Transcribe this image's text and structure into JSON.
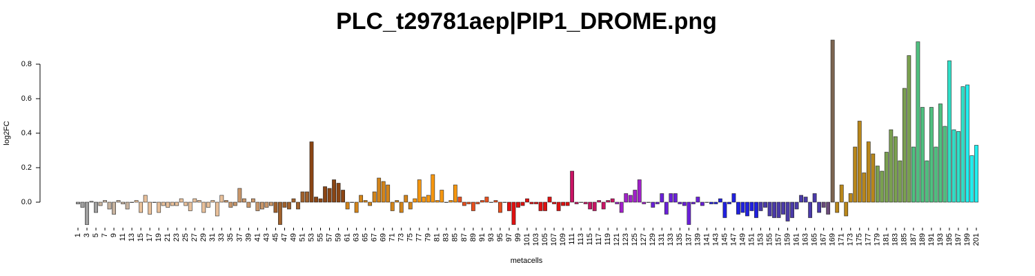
{
  "chart_data": {
    "type": "bar",
    "title": "PLC_t29781aep|PIP1_DROME.png",
    "x_label": "metacells",
    "y_label": "log2FC",
    "categories": [
      "1",
      null,
      "3",
      null,
      "5",
      null,
      "7",
      null,
      "9",
      null,
      "11",
      null,
      "13",
      null,
      "15",
      null,
      "17",
      null,
      "19",
      null,
      "21",
      null,
      "23",
      null,
      "25",
      null,
      "27",
      null,
      "29",
      null,
      "31",
      null,
      "33",
      null,
      "35",
      null,
      "37",
      null,
      "39",
      null,
      "41",
      null,
      "43",
      null,
      "45",
      null,
      "47",
      null,
      "49",
      null,
      "51",
      null,
      "53",
      null,
      "55",
      null,
      "57",
      null,
      "59",
      null,
      "61",
      null,
      "63",
      null,
      "65",
      null,
      "67",
      null,
      "69",
      null,
      "71",
      null,
      "73",
      null,
      "75",
      null,
      "77",
      null,
      "79",
      null,
      "81",
      null,
      "83",
      null,
      "85",
      null,
      "87",
      null,
      "89",
      null,
      "91",
      null,
      "93",
      null,
      "95",
      null,
      "97",
      null,
      "99",
      null,
      "101",
      null,
      "103",
      null,
      "105",
      null,
      "107",
      null,
      "109",
      null,
      "111",
      null,
      "113",
      null,
      "115",
      null,
      "117",
      null,
      "119",
      null,
      "121",
      null,
      "123",
      null,
      "125",
      null,
      "127",
      null,
      "129",
      null,
      "131",
      null,
      "133",
      null,
      "135",
      null,
      "137",
      null,
      "139",
      null,
      "141",
      null,
      "143",
      null,
      "145",
      null,
      "147",
      null,
      "149",
      null,
      "151",
      null,
      "153",
      null,
      "155",
      null,
      "157",
      null,
      "159",
      null,
      "161",
      null,
      "163",
      null,
      "165",
      null,
      "167",
      null,
      "169",
      null,
      "171",
      null,
      "173",
      null,
      "175",
      null,
      "177",
      null,
      "179",
      null,
      "181",
      null,
      "183",
      null,
      "185",
      null,
      "187",
      null,
      "189",
      null,
      "191",
      null,
      "193",
      null,
      "195",
      null,
      "197",
      null,
      "199",
      null,
      "201"
    ],
    "values": [
      -0.01,
      -0.03,
      -0.13,
      0.005,
      -0.06,
      -0.02,
      0.01,
      -0.04,
      -0.07,
      0.01,
      -0.01,
      -0.04,
      0.0,
      0.01,
      -0.06,
      0.04,
      -0.07,
      0.0,
      -0.06,
      -0.02,
      -0.03,
      -0.02,
      -0.02,
      0.02,
      -0.02,
      -0.05,
      0.02,
      0.01,
      -0.06,
      -0.03,
      0.01,
      -0.08,
      0.04,
      0.01,
      -0.03,
      -0.02,
      0.08,
      0.02,
      -0.03,
      0.02,
      -0.05,
      -0.04,
      -0.03,
      -0.02,
      -0.06,
      -0.13,
      -0.03,
      -0.04,
      0.02,
      -0.04,
      0.06,
      0.06,
      0.35,
      0.03,
      0.02,
      0.09,
      0.08,
      0.13,
      0.11,
      0.07,
      -0.04,
      0.0,
      -0.06,
      0.04,
      0.01,
      -0.02,
      0.06,
      0.14,
      0.12,
      0.1,
      -0.05,
      0.01,
      -0.06,
      0.04,
      -0.04,
      0.02,
      0.13,
      0.03,
      0.04,
      0.16,
      0.01,
      0.07,
      0.0,
      0.01,
      0.1,
      0.03,
      -0.02,
      -0.01,
      -0.05,
      -0.01,
      0.01,
      0.03,
      0.0,
      0.01,
      -0.06,
      0.0,
      -0.05,
      -0.13,
      -0.03,
      -0.02,
      0.02,
      -0.01,
      -0.01,
      -0.05,
      -0.05,
      0.03,
      -0.01,
      -0.05,
      -0.02,
      -0.02,
      0.18,
      -0.01,
      0.0,
      -0.01,
      -0.04,
      -0.05,
      0.01,
      -0.04,
      0.01,
      0.02,
      -0.01,
      -0.06,
      0.05,
      0.04,
      0.07,
      0.13,
      -0.01,
      0.0,
      -0.03,
      -0.01,
      0.05,
      -0.07,
      0.05,
      0.05,
      -0.01,
      -0.02,
      -0.13,
      -0.01,
      0.03,
      -0.02,
      0.0,
      -0.01,
      -0.01,
      0.02,
      -0.09,
      -0.01,
      0.05,
      -0.07,
      -0.06,
      -0.08,
      -0.05,
      -0.09,
      -0.05,
      -0.03,
      -0.08,
      -0.09,
      -0.09,
      -0.07,
      -0.11,
      -0.09,
      -0.04,
      0.04,
      0.03,
      -0.09,
      0.05,
      -0.06,
      -0.03,
      -0.07,
      0.94,
      -0.06,
      0.1,
      -0.08,
      0.05,
      0.32,
      0.47,
      0.17,
      0.35,
      0.28,
      0.21,
      0.18,
      0.29,
      0.42,
      0.38,
      0.24,
      0.66,
      0.85,
      0.32,
      0.93,
      0.55,
      0.24,
      0.55,
      0.32,
      0.57,
      0.44,
      0.82,
      0.42,
      0.41,
      0.67,
      0.68,
      0.27,
      0.33
    ],
    "colors": [
      "#a0a0a0",
      "#a0a0a0",
      "#a0a0a0",
      "#a0a0a0",
      "#a0a0a0",
      "#c8b4a0",
      "#c8b4a0",
      "#c8b4a0",
      "#c8b4a0",
      "#c8b4a0",
      "#c8b4a0",
      "#c8b4a0",
      "#e8c09a",
      "#e8c09a",
      "#e8c09a",
      "#e8c09a",
      "#e8c09a",
      "#e8c09a",
      "#e8c09a",
      "#e8c09a",
      "#e8c09a",
      "#e8c09a",
      "#e8c09a",
      "#e8c09a",
      "#e8c09a",
      "#e8c09a",
      "#e8c09a",
      "#e8c09a",
      "#e8c09a",
      "#e8c09a",
      "#e8c09a",
      "#e8c09a",
      "#e8c09a",
      "#c8966a",
      "#c8966a",
      "#c8966a",
      "#c8966a",
      "#c8966a",
      "#c8966a",
      "#c8966a",
      "#c8966a",
      "#c8966a",
      "#c8966a",
      "#c8966a",
      "#a0612c",
      "#a0612c",
      "#a0612c",
      "#a0612c",
      "#a0612c",
      "#a0612c",
      "#a0612c",
      "#a0612c",
      "#8b4513",
      "#8b4513",
      "#8b4513",
      "#8b4513",
      "#8b4513",
      "#8b4513",
      "#8b4513",
      "#8b4513",
      "#d2841a",
      "#d2841a",
      "#d2841a",
      "#d2841a",
      "#d2841a",
      "#d2841a",
      "#d2841a",
      "#d2841a",
      "#d2841a",
      "#d2841a",
      "#d2841a",
      "#d2841a",
      "#d2841a",
      "#d2841a",
      "#d2841a",
      "#f5960f",
      "#f5960f",
      "#f5960f",
      "#f5960f",
      "#f5960f",
      "#f5960f",
      "#f5960f",
      "#f5960f",
      "#f5960f",
      "#f5960f",
      "#e8501e",
      "#e8501e",
      "#e8501e",
      "#e8501e",
      "#e8501e",
      "#e8501e",
      "#e8501e",
      "#e8501e",
      "#e8501e",
      "#e8501e",
      "#e8501e",
      "#e01010",
      "#e01010",
      "#e01010",
      "#e01010",
      "#e01010",
      "#e01010",
      "#e01010",
      "#e01010",
      "#e01010",
      "#e01010",
      "#e01010",
      "#e01010",
      "#e01010",
      "#e01010",
      "#c81464",
      "#c81464",
      "#c81464",
      "#c81464",
      "#c81464",
      "#c81464",
      "#c81464",
      "#c81464",
      "#c81464",
      "#c81464",
      "#a020c8",
      "#a020c8",
      "#a020c8",
      "#a020c8",
      "#a020c8",
      "#a020c8",
      "#a020c8",
      "#a020c8",
      "#6a20d8",
      "#6a20d8",
      "#6a20d8",
      "#6a20d8",
      "#6a20d8",
      "#6a20d8",
      "#6a20d8",
      "#6a20d8",
      "#6a20d8",
      "#6a20d8",
      "#6a20d8",
      "#6a20d8",
      "#2020e0",
      "#2020e0",
      "#2020e0",
      "#2020e0",
      "#2020e0",
      "#2020e0",
      "#2020e0",
      "#2020e0",
      "#2020e0",
      "#2020e0",
      "#2020e0",
      "#2020e0",
      "#4a3aa8",
      "#4a3aa8",
      "#4a3aa8",
      "#4a3aa8",
      "#4a3aa8",
      "#4a3aa8",
      "#4a3aa8",
      "#4a3aa8",
      "#4a3aa8",
      "#4a3aa8",
      "#4a3aa8",
      "#4a3aa8",
      "#4a3aa8",
      "#4a3aa8",
      "#6a4a7a",
      "#6a4a7a",
      "#7b6450",
      "#b8861a",
      "#b8861a",
      "#b8861a",
      "#b8861a",
      "#b8861a",
      "#b8861a",
      "#b8861a",
      "#b8861a",
      "#b8861a",
      "#7aa050",
      "#7aa050",
      "#7aa050",
      "#7aa050",
      "#7aa050",
      "#7aa050",
      "#7aa050",
      "#7aa050",
      "#50c080",
      "#50c080",
      "#50c080",
      "#50c080",
      "#50c080",
      "#50c080",
      "#50c080",
      "#50c080",
      "#30e0c8",
      "#30e0c8",
      "#30e0c8",
      "#30e0c8",
      "#20f0f0",
      "#20f0f0",
      "#20f0f0"
    ],
    "ylim": [
      -0.14,
      0.94
    ],
    "yticks": [
      {
        "value": 0,
        "label": "0.0"
      },
      {
        "value": 0.2,
        "label": "0.2"
      },
      {
        "value": 0.4,
        "label": "0.4"
      },
      {
        "value": 0.6,
        "label": "0.6"
      },
      {
        "value": 0.8,
        "label": "0.8"
      }
    ]
  }
}
